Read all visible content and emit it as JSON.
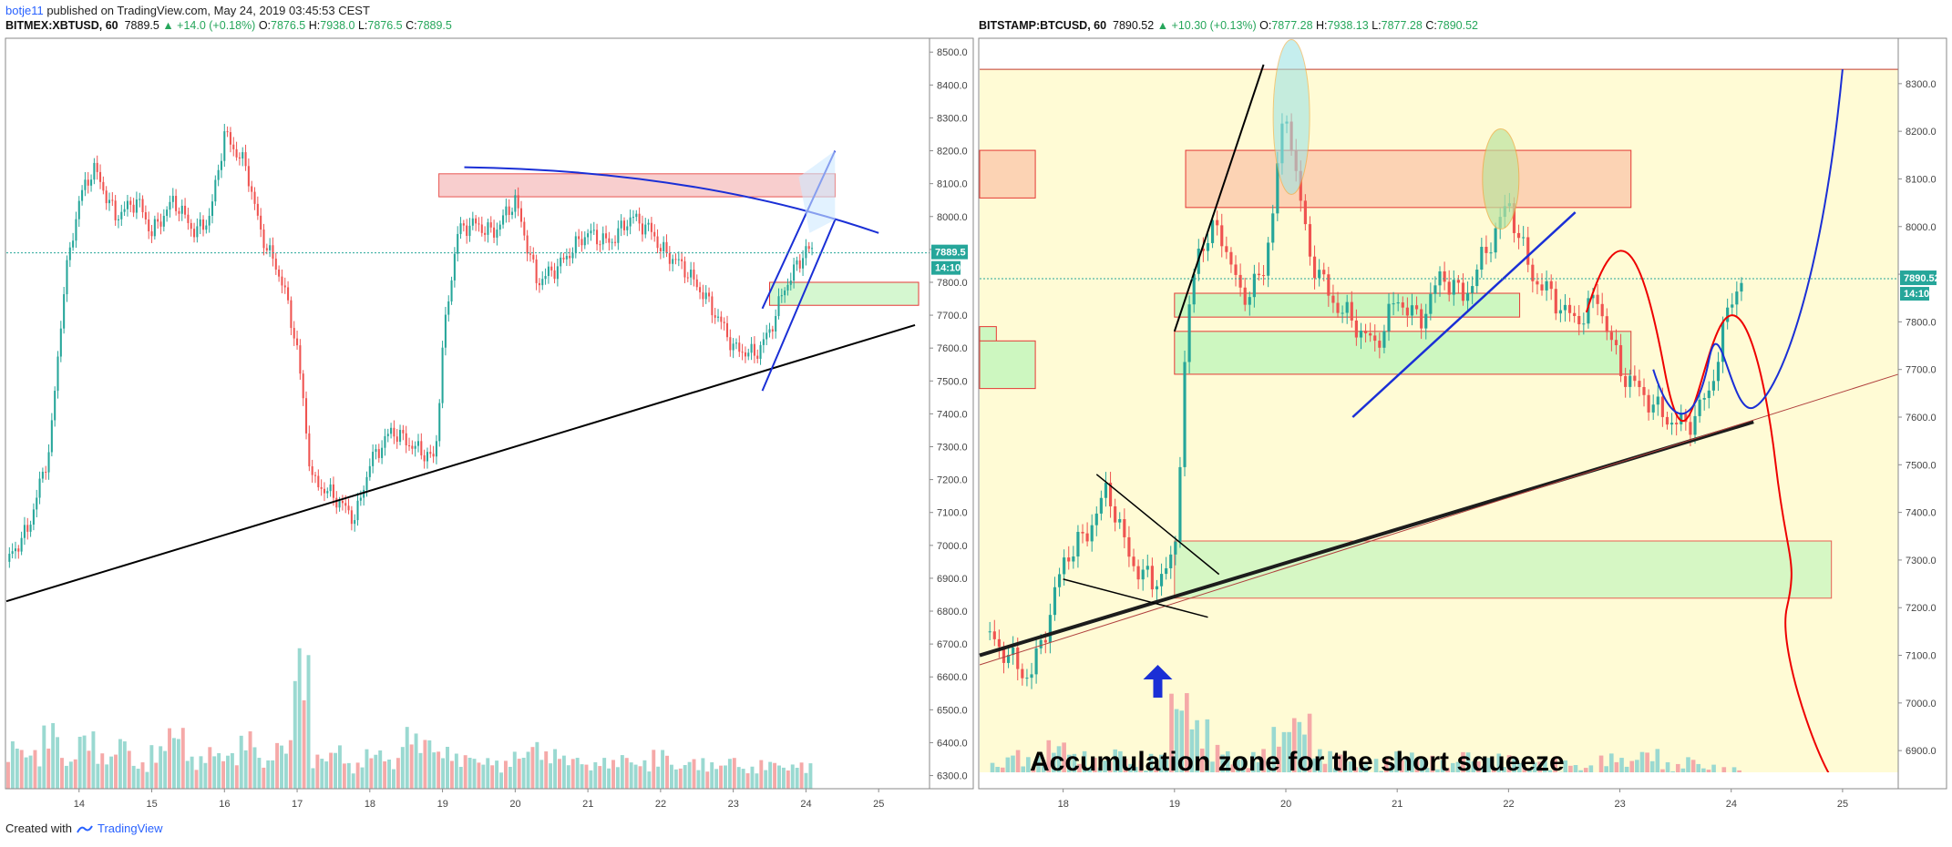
{
  "header": {
    "user": "botje11",
    "published": "published on TradingView.com, May 24, 2019 03:45:53 CEST"
  },
  "footer": {
    "created_with": "Created with",
    "brand": "TradingView"
  },
  "charts": [
    {
      "symbol": "BITMEX:XBTUSD, 60",
      "last": "7889.5",
      "change": "+14.0 (+0.18%)",
      "o": "7876.5",
      "h": "7938.0",
      "l": "7876.5",
      "c": "7889.5",
      "price_label": "7889.5",
      "countdown": "14:10"
    },
    {
      "symbol": "BITSTAMP:BTCUSD, 60",
      "last": "7890.52",
      "change": "+10.30 (+0.13%)",
      "o": "7877.28",
      "h": "7938.13",
      "l": "7877.28",
      "c": "7890.52",
      "price_label": "7890.52",
      "countdown": "14:10",
      "annotation": "Accumulation zone for the short squeeze"
    }
  ],
  "colors": {
    "up": "#26a69a",
    "down": "#ef5350",
    "accent": "#2962ff"
  },
  "chart_data": [
    {
      "type": "line",
      "title": "BITMEX:XBTUSD, 60",
      "xlabel": "",
      "ylabel": "",
      "x_ticks": [
        "14",
        "15",
        "16",
        "17",
        "18",
        "19",
        "20",
        "21",
        "22",
        "23",
        "24",
        "25"
      ],
      "y_ticks": [
        8500,
        8400,
        8300,
        8200,
        8100,
        8000,
        7900,
        7800,
        7700,
        7600,
        7500,
        7400,
        7300,
        7200,
        7100,
        7000,
        6900,
        6800,
        6700,
        6600,
        6500,
        6400,
        6300
      ],
      "ylim": [
        6260,
        8520
      ],
      "xlim": [
        13.0,
        25.7
      ],
      "grid": false,
      "series": [
        {
          "x": [
            13.0,
            13.3,
            13.6,
            13.8,
            14.0,
            14.2,
            14.5,
            14.8,
            15.0,
            15.3,
            15.6,
            15.8,
            16.0,
            16.3,
            16.5,
            16.8,
            17.0,
            17.2,
            17.5,
            17.8,
            18.0,
            18.3,
            18.6,
            18.9,
            19.0,
            19.2,
            19.4,
            19.7,
            20.0,
            20.3,
            20.6,
            20.9,
            21.0,
            21.3,
            21.6,
            21.9,
            22.0,
            22.3,
            22.6,
            22.9,
            23.0,
            23.3,
            23.5,
            23.7,
            24.0,
            24.1
          ],
          "y": [
            6950,
            7050,
            7300,
            7800,
            8050,
            8150,
            8000,
            8050,
            7950,
            8050,
            7950,
            8000,
            8250,
            8150,
            7950,
            7800,
            7600,
            7200,
            7150,
            7080,
            7250,
            7350,
            7300,
            7260,
            7600,
            7950,
            7980,
            7950,
            8050,
            7800,
            7850,
            7930,
            7950,
            7920,
            8000,
            7950,
            7900,
            7850,
            7760,
            7650,
            7600,
            7580,
            7650,
            7780,
            7900,
            7890
          ]
        }
      ],
      "volume": [
        110,
        90,
        150,
        70,
        130,
        80,
        120,
        60,
        100,
        140,
        75,
        95,
        85,
        130,
        70,
        110,
        320,
        80,
        100,
        60,
        90,
        70,
        140,
        120,
        95,
        80,
        70,
        65,
        85,
        110,
        90,
        75,
        60,
        70,
        80,
        65,
        90,
        55,
        70,
        60,
        75,
        50,
        65,
        55,
        60
      ],
      "annotations": {
        "support_trendline": true,
        "resistance_curve": true,
        "rising_channel": true,
        "supply_zone": [
          8060,
          8130
        ],
        "demand_zone": [
          7730,
          7800
        ]
      }
    },
    {
      "type": "line",
      "title": "BITSTAMP:BTCUSD, 60",
      "xlabel": "",
      "ylabel": "",
      "x_ticks": [
        "18",
        "19",
        "20",
        "21",
        "22",
        "23",
        "24",
        "25"
      ],
      "y_ticks": [
        8300,
        8200,
        8100,
        8000,
        7900,
        7800,
        7700,
        7600,
        7500,
        7400,
        7300,
        7200,
        7100,
        7000,
        6900
      ],
      "ylim": [
        6820,
        8380
      ],
      "xlim": [
        17.25,
        25.5
      ],
      "grid": false,
      "series": [
        {
          "x": [
            17.3,
            17.5,
            17.7,
            17.9,
            18.0,
            18.2,
            18.4,
            18.6,
            18.8,
            19.0,
            19.1,
            19.2,
            19.4,
            19.6,
            19.8,
            20.0,
            20.2,
            20.4,
            20.6,
            20.8,
            21.0,
            21.2,
            21.4,
            21.6,
            21.8,
            22.0,
            22.2,
            22.4,
            22.6,
            22.8,
            23.0,
            23.2,
            23.4,
            23.6,
            23.8,
            24.0,
            24.1
          ],
          "y": [
            7150,
            7100,
            7050,
            7200,
            7300,
            7350,
            7450,
            7300,
            7250,
            7300,
            7750,
            7950,
            8000,
            7850,
            7900,
            8250,
            7950,
            7850,
            7800,
            7750,
            7850,
            7800,
            7900,
            7850,
            7950,
            8050,
            7900,
            7850,
            7800,
            7850,
            7700,
            7650,
            7600,
            7580,
            7650,
            7850,
            7890
          ]
        }
      ],
      "volume": [
        60,
        90,
        75,
        110,
        85,
        70,
        95,
        65,
        80,
        220,
        160,
        100,
        75,
        90,
        140,
        170,
        90,
        80,
        60,
        70,
        85,
        75,
        65,
        90,
        70,
        80,
        60,
        75,
        65,
        55,
        80,
        70,
        90,
        60,
        75,
        55,
        50
      ],
      "annotations": {
        "accumulation_zone": [
          7220,
          7340
        ],
        "supply_zone": [
          8040,
          8160
        ],
        "demand_zones": [
          [
            7810,
            7860
          ],
          [
            7690,
            7780
          ]
        ],
        "projection_red": true,
        "projection_blue": true
      }
    }
  ]
}
